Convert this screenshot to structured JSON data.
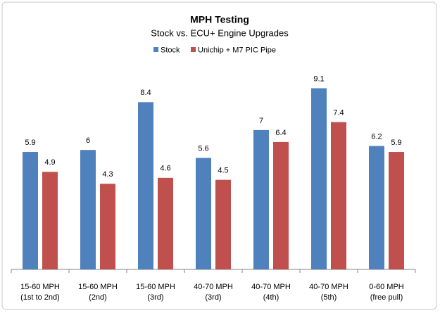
{
  "chart_data": {
    "type": "bar",
    "title": "MPH Testing",
    "subtitle": "Stock vs. ECU+ Engine Upgrades",
    "categories": [
      [
        "15-60 MPH",
        "(1st to 2nd)"
      ],
      [
        "15-60 MPH",
        "(2nd)"
      ],
      [
        "15-60 MPH",
        "(3rd)"
      ],
      [
        "40-70 MPH",
        "(3rd)"
      ],
      [
        "40-70 MPH",
        "(4th)"
      ],
      [
        "40-70 MPH",
        "(5th)"
      ],
      [
        "0-60 MPH",
        "(free pull)"
      ]
    ],
    "series": [
      {
        "name": "Stock",
        "color": "#4f81bd",
        "values": [
          5.9,
          6,
          8.4,
          5.6,
          7,
          9.1,
          6.2
        ]
      },
      {
        "name": "Unichip + M7 PIC Pipe",
        "color": "#c0504d",
        "values": [
          4.9,
          4.3,
          4.6,
          4.5,
          6.4,
          7.4,
          5.9
        ]
      }
    ],
    "ylim": [
      0,
      10
    ],
    "legend": "top"
  }
}
